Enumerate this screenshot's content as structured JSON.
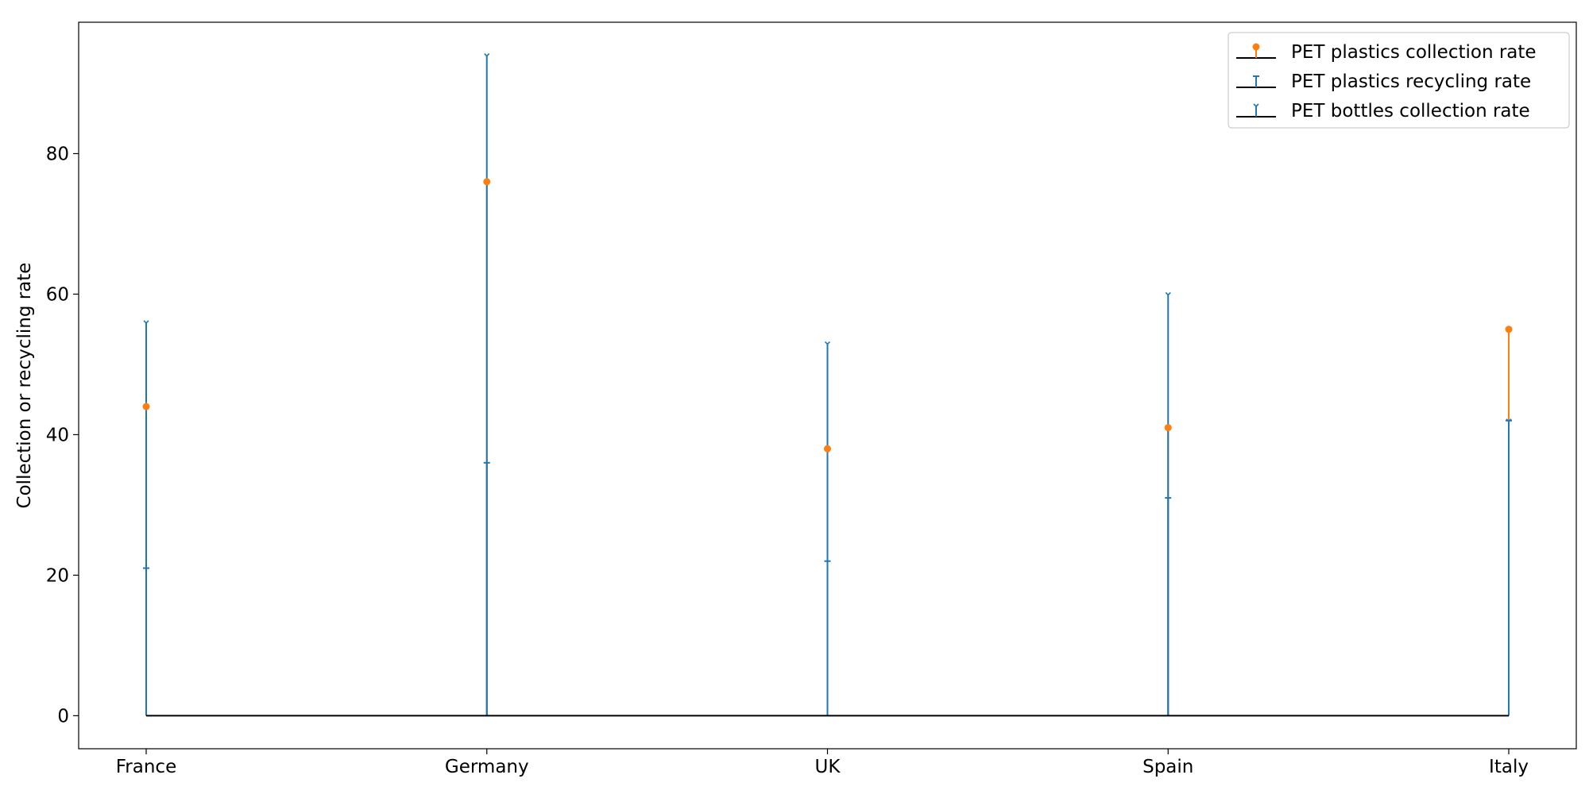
{
  "chart_data": {
    "type": "stem",
    "categories": [
      "France",
      "Germany",
      "UK",
      "Spain",
      "Italy"
    ],
    "series": [
      {
        "name": "PET plastics collection rate",
        "values": [
          44,
          76,
          38,
          41,
          55
        ],
        "color": "#ff7f0e",
        "marker": "circle"
      },
      {
        "name": "PET plastics recycling rate",
        "values": [
          21,
          36,
          22,
          31,
          42
        ],
        "color": "#1f77b4",
        "marker": "tick"
      },
      {
        "name": "PET bottles collection rate",
        "values": [
          56,
          94,
          53,
          60,
          42
        ],
        "color": "#1f77b4",
        "marker": "tri_down"
      }
    ],
    "baseline": 0,
    "baseline_color": "#000000",
    "title": "",
    "xlabel": "",
    "ylabel": "Collection or recycling rate",
    "ylim": [
      -4.7,
      98.7
    ],
    "yticks": [
      0,
      20,
      40,
      60,
      80
    ],
    "grid": false,
    "legend_position": "top-right"
  }
}
